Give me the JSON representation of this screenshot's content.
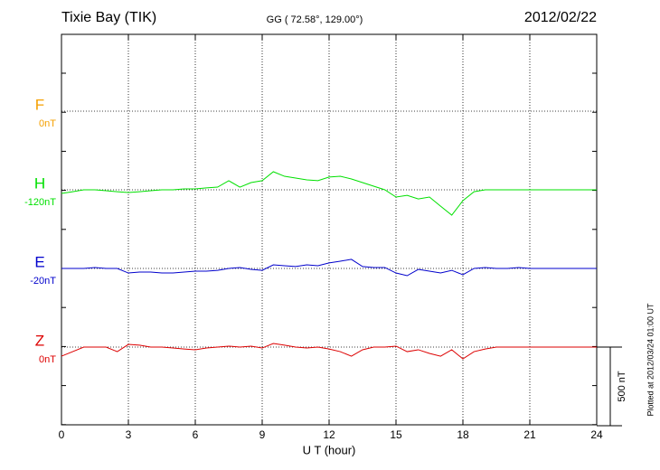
{
  "chart_data": {
    "type": "line",
    "title": "Tixie Bay (TIK)",
    "subtitle": "GG ( 72.58°, 129.00°)",
    "date": "2012/02/22",
    "xlabel": "U T (hour)",
    "note": "Plotted at 2012/03/24 01:00 UT",
    "scale_bar": {
      "value": 500,
      "label": "500 nT"
    },
    "xlim": [
      0,
      24
    ],
    "xticks": [
      0,
      3,
      6,
      9,
      12,
      15,
      18,
      21,
      24
    ],
    "grid": true,
    "x": [
      0,
      0.5,
      1,
      1.5,
      2,
      2.5,
      3,
      3.5,
      4,
      4.5,
      5,
      5.5,
      6,
      6.5,
      7,
      7.5,
      8,
      8.5,
      9,
      9.5,
      10,
      10.5,
      11,
      11.5,
      12,
      12.5,
      13,
      13.5,
      14,
      14.5,
      15,
      15.5,
      16,
      16.5,
      17,
      17.5,
      18,
      18.5,
      19,
      19.5,
      20,
      20.5,
      21,
      21.5,
      22,
      22.5,
      23,
      23.5,
      24
    ],
    "series": [
      {
        "name": "F",
        "offset": "0nT",
        "color": "#f5a000",
        "values": [
          null,
          null,
          null,
          null,
          null,
          null,
          null,
          null,
          null,
          null,
          null,
          null,
          null,
          null,
          null,
          null,
          null,
          null,
          null,
          null,
          null,
          null,
          null,
          null,
          null,
          null,
          null,
          null,
          null,
          null,
          null,
          null,
          null,
          null,
          null,
          null,
          null,
          null,
          null,
          null,
          null,
          null,
          null,
          null,
          null,
          null,
          null,
          null,
          null
        ]
      },
      {
        "name": "H",
        "offset": "-120nT",
        "color": "#00e000",
        "values": [
          -23,
          -12,
          0,
          0,
          -6,
          -12,
          -17,
          -12,
          -6,
          0,
          0,
          6,
          6,
          12,
          17,
          58,
          17,
          46,
          58,
          115,
          86,
          75,
          63,
          58,
          81,
          86,
          69,
          46,
          23,
          0,
          -46,
          -35,
          -58,
          -46,
          -104,
          -161,
          -69,
          -12,
          0,
          0,
          0,
          0,
          0,
          0,
          0,
          0,
          0,
          0,
          0
        ]
      },
      {
        "name": "E",
        "offset": "-20nT",
        "color": "#0000cc",
        "values": [
          0,
          0,
          0,
          6,
          0,
          0,
          -29,
          -23,
          -23,
          -29,
          -29,
          -23,
          -17,
          -17,
          -12,
          0,
          6,
          -6,
          -12,
          23,
          17,
          12,
          23,
          17,
          35,
          46,
          58,
          12,
          6,
          6,
          -29,
          -46,
          -6,
          -17,
          -29,
          -12,
          -40,
          0,
          6,
          0,
          0,
          6,
          0,
          0,
          0,
          0,
          0,
          0,
          0
        ]
      },
      {
        "name": "Z",
        "offset": "0nT",
        "color": "#dd0000",
        "values": [
          -58,
          -29,
          0,
          0,
          0,
          -29,
          17,
          12,
          0,
          0,
          -6,
          -12,
          -17,
          -6,
          0,
          6,
          0,
          6,
          -6,
          23,
          12,
          0,
          -6,
          0,
          -12,
          -29,
          -58,
          -17,
          0,
          0,
          6,
          -29,
          -17,
          -40,
          -58,
          -17,
          -75,
          -29,
          -12,
          0,
          0,
          0,
          0,
          0,
          0,
          0,
          0,
          0,
          0
        ]
      }
    ]
  }
}
